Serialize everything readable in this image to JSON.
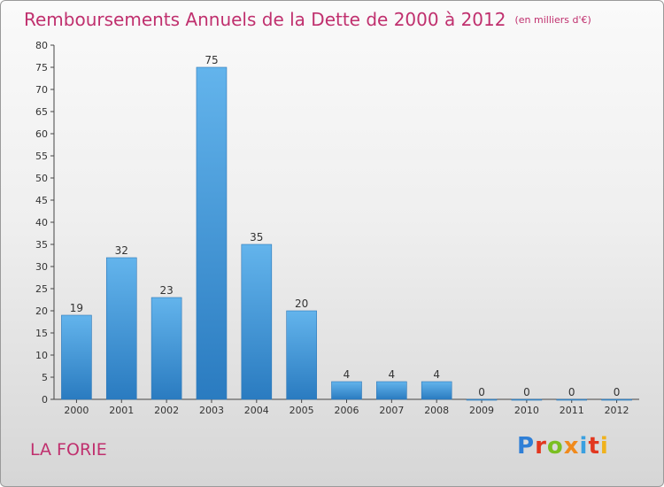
{
  "title": "Remboursements Annuels de la Dette de 2000 à 2012",
  "unit": "(en milliers d'€)",
  "commune": "LA FORIE",
  "logo": {
    "p": "P",
    "r": "r",
    "o": "o",
    "x": "x",
    "i": "i",
    "t": "t",
    "i2": "i"
  },
  "colors": {
    "bar_top": "#63b4ec",
    "bar_bottom": "#2a7bc0",
    "title": "#c0306e"
  },
  "chart_data": {
    "type": "bar",
    "title": "Remboursements Annuels de la Dette de 2000 à 2012",
    "subtitle": "(en milliers d'€)",
    "xlabel": "",
    "ylabel": "",
    "categories": [
      "2000",
      "2001",
      "2002",
      "2003",
      "2004",
      "2005",
      "2006",
      "2007",
      "2008",
      "2009",
      "2010",
      "2011",
      "2012"
    ],
    "values": [
      19,
      32,
      23,
      75,
      35,
      20,
      4,
      4,
      4,
      0,
      0,
      0,
      0
    ],
    "ylim": [
      0,
      80
    ],
    "yticks": [
      0,
      5,
      10,
      15,
      20,
      25,
      30,
      35,
      40,
      45,
      50,
      55,
      60,
      65,
      70,
      75,
      80
    ],
    "grid": false,
    "legend": "none"
  }
}
